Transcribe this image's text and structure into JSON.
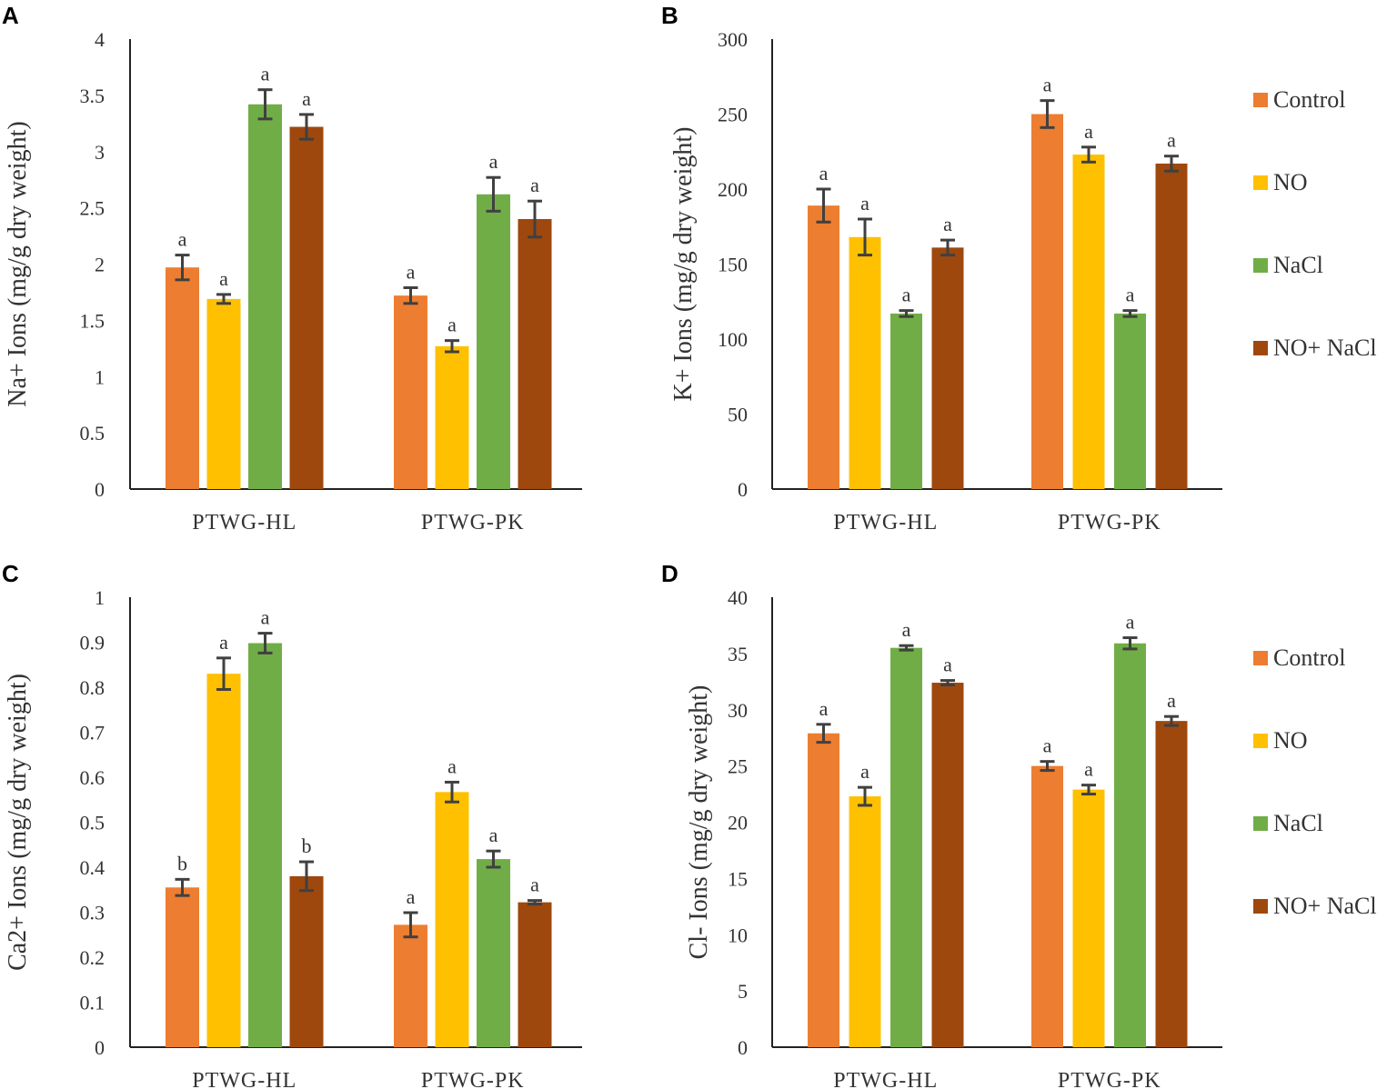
{
  "legend": {
    "labels": [
      "Control",
      "NO",
      "NaCl",
      "NO+ NaCl"
    ],
    "colors": [
      "#ED7D31",
      "#FFC000",
      "#70AD47",
      "#9E480E"
    ]
  },
  "chart_data": [
    {
      "panel": "A",
      "type": "bar",
      "ylabel": "Na+ Ions (mg/g dry weight)",
      "ylim": [
        0,
        4
      ],
      "yticks": [
        "0",
        "0.5",
        "1",
        "1.5",
        "2",
        "2.5",
        "3",
        "3.5",
        "4"
      ],
      "categories": [
        "PTWG-HL",
        "PTWG-PK"
      ],
      "series": [
        {
          "name": "Control",
          "values": [
            1.97,
            1.72
          ],
          "errors": [
            0.11,
            0.07
          ],
          "letters": [
            "a",
            "a"
          ]
        },
        {
          "name": "NO",
          "values": [
            1.69,
            1.27
          ],
          "errors": [
            0.04,
            0.05
          ],
          "letters": [
            "a",
            "a"
          ]
        },
        {
          "name": "NaCl",
          "values": [
            3.42,
            2.62
          ],
          "errors": [
            0.13,
            0.15
          ],
          "letters": [
            "a",
            "a"
          ]
        },
        {
          "name": "NO+ NaCl",
          "values": [
            3.22,
            2.4
          ],
          "errors": [
            0.11,
            0.16
          ],
          "letters": [
            "a",
            "a"
          ]
        }
      ]
    },
    {
      "panel": "B",
      "type": "bar",
      "ylabel": "K+ Ions (mg/g dry weight)",
      "ylim": [
        0,
        300
      ],
      "yticks": [
        "0",
        "50",
        "100",
        "150",
        "200",
        "250",
        "300"
      ],
      "categories": [
        "PTWG-HL",
        "PTWG-PK"
      ],
      "series": [
        {
          "name": "Control",
          "values": [
            189,
            250
          ],
          "errors": [
            11,
            9
          ],
          "letters": [
            "a",
            "a"
          ]
        },
        {
          "name": "NO",
          "values": [
            168,
            223
          ],
          "errors": [
            12,
            5
          ],
          "letters": [
            "a",
            "a"
          ]
        },
        {
          "name": "NaCl",
          "values": [
            117,
            117
          ],
          "errors": [
            2,
            2
          ],
          "letters": [
            "a",
            "a"
          ]
        },
        {
          "name": "NO+ NaCl",
          "values": [
            161,
            217
          ],
          "errors": [
            5,
            5
          ],
          "letters": [
            "a",
            "a"
          ]
        }
      ]
    },
    {
      "panel": "C",
      "type": "bar",
      "ylabel": "Ca2+ Ions (mg/g dry weight)",
      "ylim": [
        0,
        1
      ],
      "yticks": [
        "0",
        "0.1",
        "0.2",
        "0.3",
        "0.4",
        "0.5",
        "0.6",
        "0.7",
        "0.8",
        "0.9",
        "1"
      ],
      "categories": [
        "PTWG-HL",
        "PTWG-PK"
      ],
      "series": [
        {
          "name": "Control",
          "values": [
            0.355,
            0.272
          ],
          "errors": [
            0.018,
            0.027
          ],
          "letters": [
            "b",
            "a"
          ]
        },
        {
          "name": "NO",
          "values": [
            0.83,
            0.567
          ],
          "errors": [
            0.035,
            0.022
          ],
          "letters": [
            "a",
            "a"
          ]
        },
        {
          "name": "NaCl",
          "values": [
            0.898,
            0.418
          ],
          "errors": [
            0.022,
            0.018
          ],
          "letters": [
            "a",
            "a"
          ]
        },
        {
          "name": "NO+ NaCl",
          "values": [
            0.38,
            0.322
          ],
          "errors": [
            0.032,
            0.004
          ],
          "letters": [
            "b",
            "a"
          ]
        }
      ]
    },
    {
      "panel": "D",
      "type": "bar",
      "ylabel": "Cl- Ions (mg/g dry weight)",
      "ylim": [
        0,
        40
      ],
      "yticks": [
        "0",
        "5",
        "10",
        "15",
        "20",
        "25",
        "30",
        "35",
        "40"
      ],
      "categories": [
        "PTWG-HL",
        "PTWG-PK"
      ],
      "series": [
        {
          "name": "Control",
          "values": [
            27.9,
            25
          ],
          "errors": [
            0.8,
            0.4
          ],
          "letters": [
            "a",
            "a"
          ]
        },
        {
          "name": "NO",
          "values": [
            22.3,
            22.9
          ],
          "errors": [
            0.8,
            0.4
          ],
          "letters": [
            "a",
            "a"
          ]
        },
        {
          "name": "NaCl",
          "values": [
            35.5,
            35.9
          ],
          "errors": [
            0.2,
            0.5
          ],
          "letters": [
            "a",
            "a"
          ]
        },
        {
          "name": "NO+ NaCl",
          "values": [
            32.4,
            29
          ],
          "errors": [
            0.2,
            0.4
          ],
          "letters": [
            "a",
            "a"
          ]
        }
      ]
    }
  ]
}
